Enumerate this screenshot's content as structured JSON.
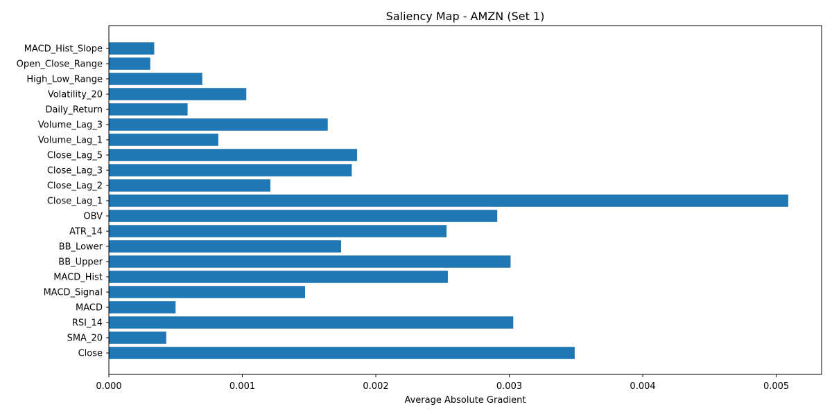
{
  "chart_data": {
    "type": "bar",
    "orientation": "horizontal",
    "title": "Saliency Map - AMZN (Set 1)",
    "xlabel": "Average Absolute Gradient",
    "ylabel": "",
    "xlim": [
      0,
      0.00534
    ],
    "xticks": [
      {
        "value": 0,
        "label": "0.000"
      },
      {
        "value": 0.001,
        "label": "0.001"
      },
      {
        "value": 0.002,
        "label": "0.002"
      },
      {
        "value": 0.003,
        "label": "0.003"
      },
      {
        "value": 0.004,
        "label": "0.004"
      },
      {
        "value": 0.005,
        "label": "0.005"
      }
    ],
    "grid": false,
    "bar_color": "#1f77b4",
    "categories": [
      "Close",
      "SMA_20",
      "RSI_14",
      "MACD",
      "MACD_Signal",
      "MACD_Hist",
      "BB_Upper",
      "BB_Lower",
      "ATR_14",
      "OBV",
      "Close_Lag_1",
      "Close_Lag_2",
      "Close_Lag_3",
      "Close_Lag_5",
      "Volume_Lag_1",
      "Volume_Lag_3",
      "Daily_Return",
      "Volatility_20",
      "High_Low_Range",
      "Open_Close_Range",
      "MACD_Hist_Slope"
    ],
    "values": [
      0.00349,
      0.00043,
      0.00303,
      0.0005,
      0.00147,
      0.00254,
      0.00301,
      0.00174,
      0.00253,
      0.00291,
      0.00509,
      0.00121,
      0.00182,
      0.00186,
      0.00082,
      0.00164,
      0.00059,
      0.00103,
      0.0007,
      0.00031,
      0.00034
    ]
  }
}
